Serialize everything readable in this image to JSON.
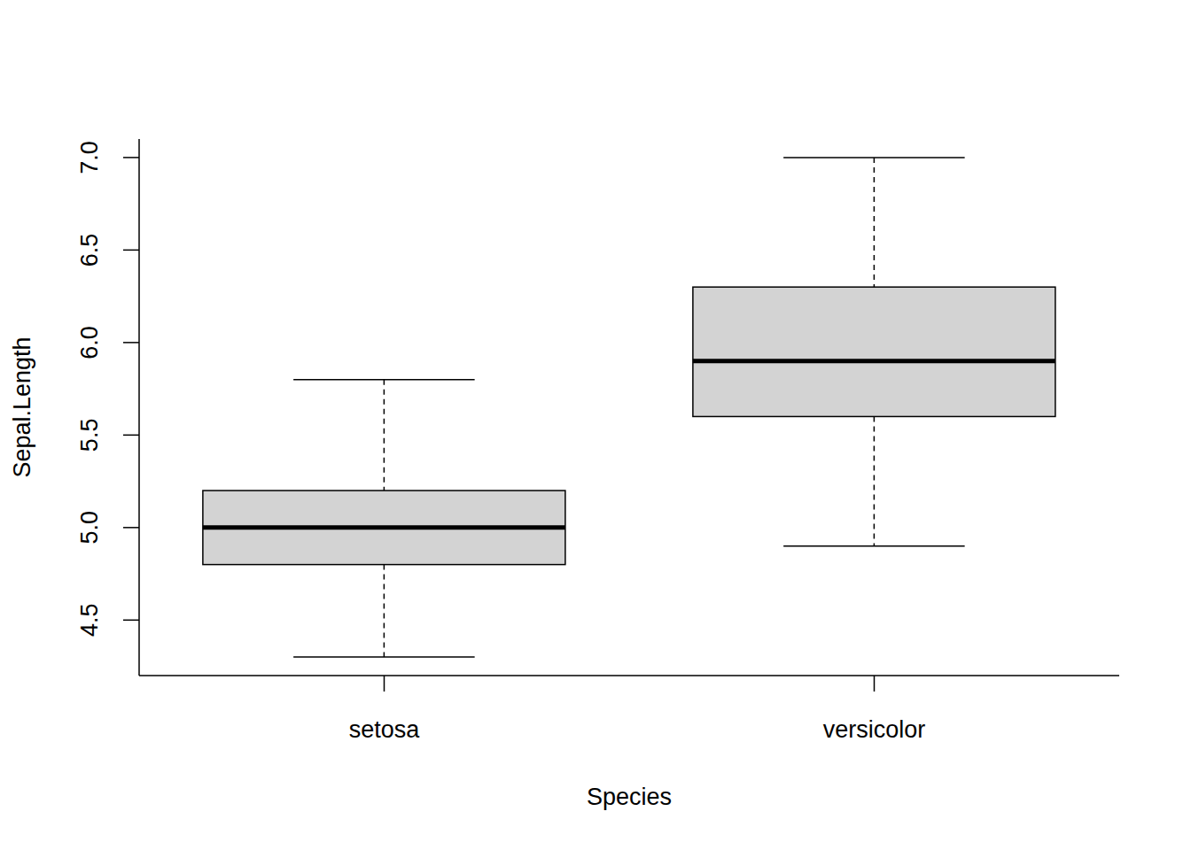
{
  "chart_data": {
    "type": "boxplot",
    "x_label": "Species",
    "y_label": "Sepal.Length",
    "categories": [
      "setosa",
      "versicolor"
    ],
    "min": [
      4.3,
      4.9
    ],
    "q1": [
      4.8,
      5.6
    ],
    "median": [
      5.0,
      5.9
    ],
    "q3": [
      5.2,
      6.3
    ],
    "max": [
      5.8,
      7.0
    ],
    "color": "#d3d3d3",
    "ylim": [
      4.2,
      7.1
    ],
    "yticks": [
      4.5,
      {
        "value": 5,
        "label": "5.0"
      },
      5.5,
      {
        "value": 6,
        "label": "6.0"
      },
      6.5,
      {
        "value": 7,
        "label": "7.0"
      }
    ],
    "grid": false
  }
}
